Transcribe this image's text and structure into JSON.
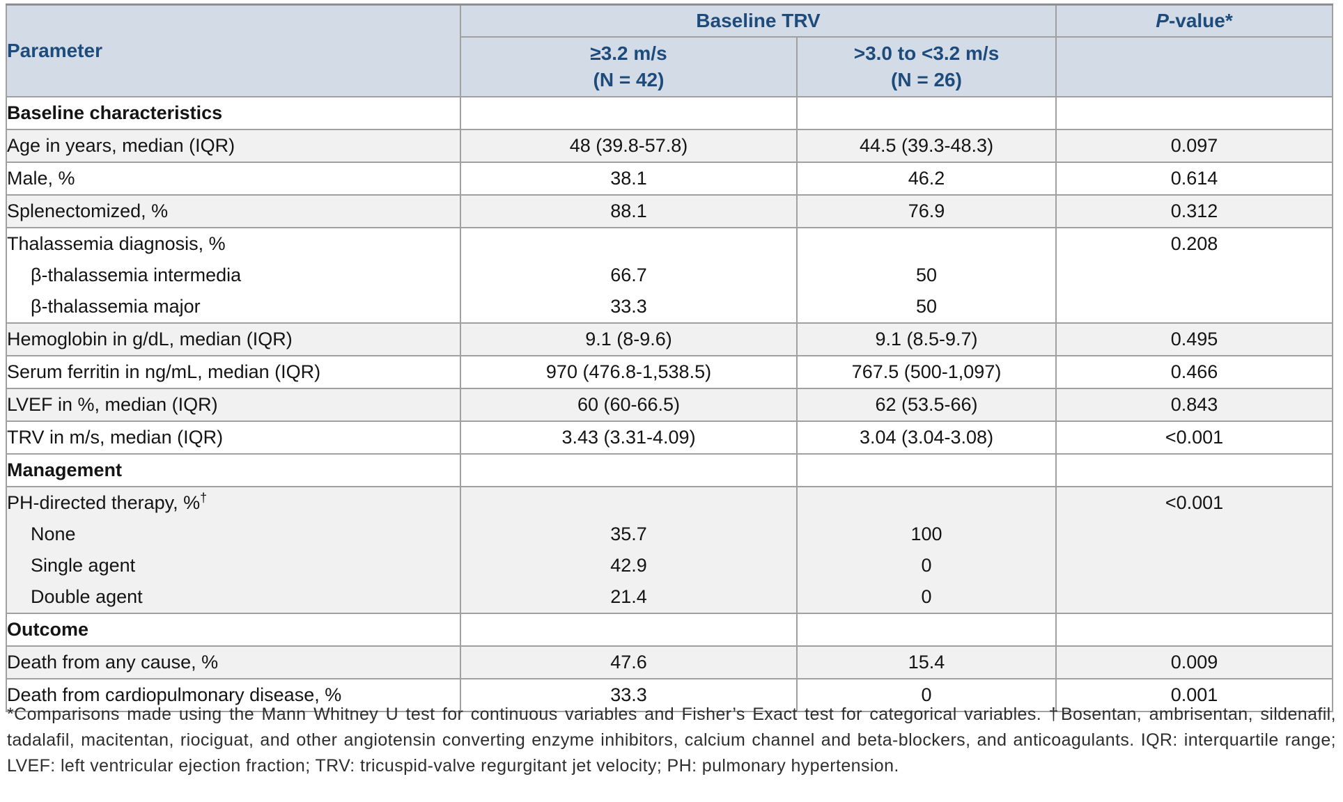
{
  "table": {
    "header": {
      "parameter": "Parameter",
      "baseline_trv": "Baseline TRV",
      "p_value": {
        "italic": "P",
        "rest": "-value*"
      },
      "group1": {
        "line1": "≥3.2 m/s",
        "line2": "(N = 42)"
      },
      "group2": {
        "line1": ">3.0 to <3.2 m/s",
        "line2": "(N = 26)"
      }
    },
    "rows": [
      {
        "label": "Baseline characteristics"
      },
      {
        "param": "Age in years, median (IQR)",
        "v1": "48 (39.8-57.8)",
        "v2": "44.5 (39.3-48.3)",
        "p": "0.097"
      },
      {
        "param": "Male, %",
        "v1": "38.1",
        "v2": "46.2",
        "p": "0.614"
      },
      {
        "param": "Splenectomized, %",
        "v1": "88.1",
        "v2": "76.9",
        "p": "0.312"
      },
      {
        "lines": {
          "param": [
            "Thalassemia diagnosis, %",
            "β-thalassemia intermedia",
            "β-thalassemia major"
          ],
          "v1": [
            "",
            "66.7",
            "33.3"
          ],
          "v2": [
            "",
            "50",
            "50"
          ],
          "p": [
            "0.208",
            "",
            ""
          ]
        }
      },
      {
        "param": "Hemoglobin in g/dL, median (IQR)",
        "v1": "9.1 (8-9.6)",
        "v2": "9.1 (8.5-9.7)",
        "p": "0.495"
      },
      {
        "param": "Serum ferritin in ng/mL, median (IQR)",
        "v1": "970 (476.8-1,538.5)",
        "v2": "767.5 (500-1,097)",
        "p": "0.466"
      },
      {
        "param": "LVEF in %, median (IQR)",
        "v1": "60 (60-66.5)",
        "v2": "62 (53.5-66)",
        "p": "0.843"
      },
      {
        "param": "TRV in m/s, median (IQR)",
        "v1": "3.43 (3.31-4.09)",
        "v2": "3.04 (3.04-3.08)",
        "p": "<0.001"
      },
      {
        "label": "Management"
      },
      {
        "lines": {
          "param_main": "PH-directed therapy, %",
          "param_sup": "†",
          "param": [
            "",
            "None",
            "Single agent",
            "Double agent"
          ],
          "v1": [
            "",
            "35.7",
            "42.9",
            "21.4"
          ],
          "v2": [
            "",
            "100",
            "0",
            "0"
          ],
          "p": [
            "<0.001",
            "",
            "",
            ""
          ]
        }
      },
      {
        "label": "Outcome"
      },
      {
        "param": "Death from any cause, %",
        "v1": "47.6",
        "v2": "15.4",
        "p": "0.009"
      },
      {
        "param": "Death from cardiopulmonary disease, %",
        "v1": "33.3",
        "v2": "0",
        "p": "0.001"
      }
    ]
  },
  "footnote": "*Comparisons made using the Mann Whitney U test for continuous variables and Fisher’s Exact test for categorical variables. †Bosentan, ambrisentan, sildenafil, tadalafil, macitentan, riociguat, and other angiotensin converting enzyme inhibitors, calcium channel and beta-blockers, and anticoagulants. IQR: interquartile range; LVEF: left ventricular ejection fraction; TRV: tricuspid-valve regurgitant jet velocity; PH: pulmonary hypertension.",
  "colors": {
    "header_bg": "#d3dce6",
    "header_text": "#1d4b7c",
    "shaded_row": "#f1f1f1",
    "border": "#a0a0a0"
  }
}
